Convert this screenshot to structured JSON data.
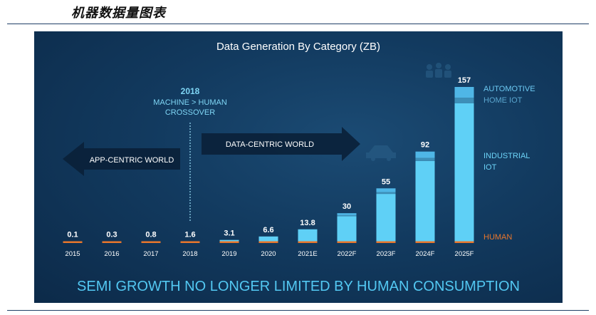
{
  "doc": {
    "title": "机器数据量图表"
  },
  "annotations": {
    "crossover_year": "2018",
    "crossover_line1": "MACHINE > HUMAN",
    "crossover_line2": "CROSSOVER",
    "app_centric": "APP-CENTRIC WORLD",
    "data_centric": "DATA-CENTRIC WORLD",
    "banner": "SEMI GROWTH NO LONGER LIMITED BY HUMAN CONSUMPTION"
  },
  "chart_data": {
    "type": "bar",
    "title": "Data Generation By Category (ZB)",
    "categories": [
      "2015",
      "2016",
      "2017",
      "2018",
      "2019",
      "2020",
      "2021E",
      "2022F",
      "2023F",
      "2024F",
      "2025F"
    ],
    "values": [
      0.1,
      0.3,
      0.8,
      1.6,
      3.1,
      6.6,
      13.8,
      30,
      55,
      92,
      157
    ],
    "data_labels": [
      "0.1",
      "0.3",
      "0.8",
      "1.6",
      "3.1",
      "6.6",
      "13.8",
      "30",
      "55",
      "92",
      "157"
    ],
    "stack_order": [
      "HUMAN",
      "INDUSTRIAL IOT",
      "HOME IOT",
      "AUTOMOTIVE"
    ],
    "legend": [
      "AUTOMOTIVE",
      "HOME IOT",
      "INDUSTRIAL IOT",
      "HUMAN"
    ],
    "legend_position": "right",
    "colors": {
      "HUMAN": "#e8762c",
      "INDUSTRIAL IOT": "#5fd0f6",
      "HOME IOT": "#3d8fb8",
      "AUTOMOTIVE": "#4fb6e6"
    },
    "ylim": [
      0,
      157
    ],
    "grid": false,
    "xlabel": "",
    "ylabel": ""
  }
}
